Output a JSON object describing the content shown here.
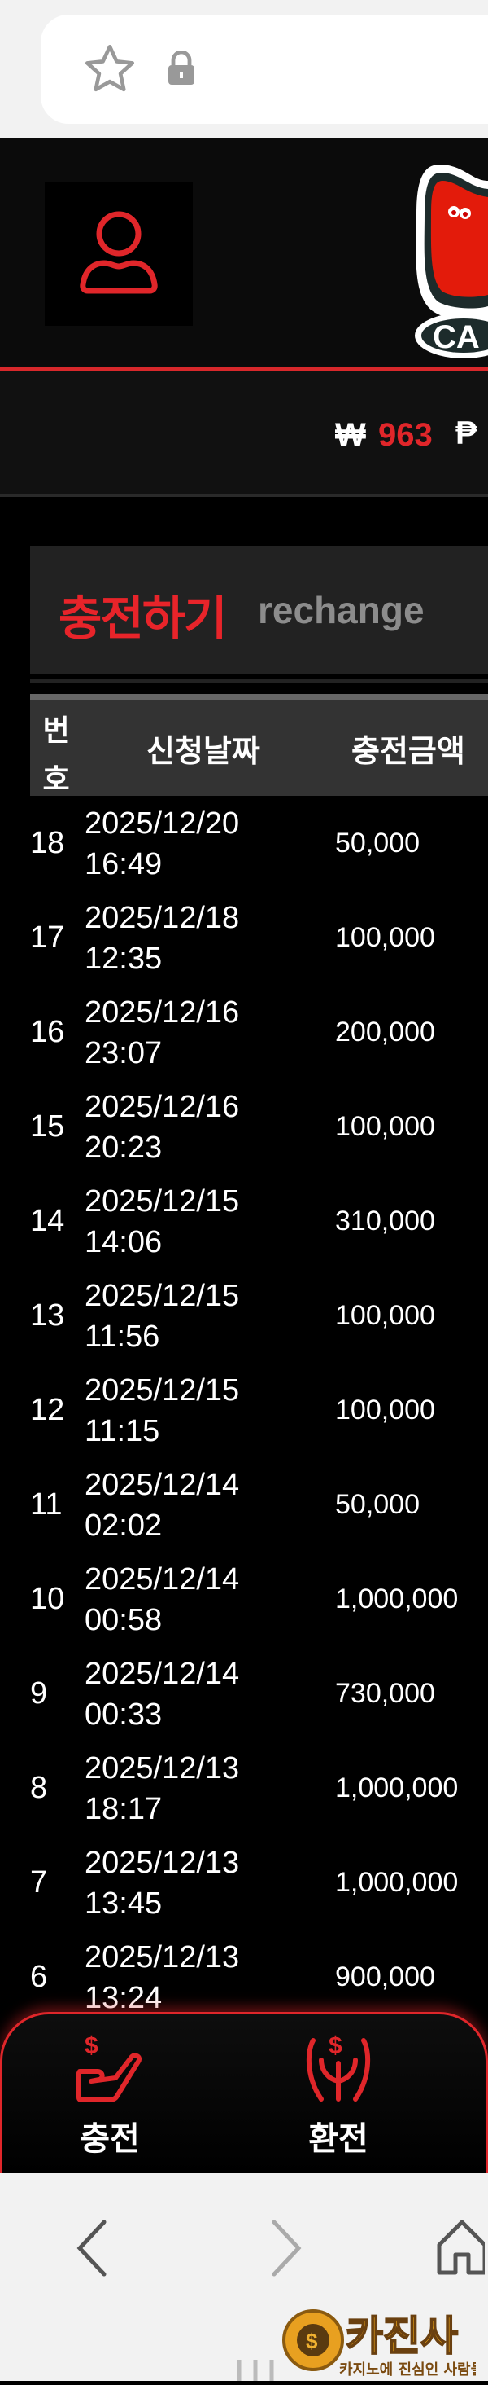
{
  "browser": {
    "star_icon": "star-icon",
    "lock_icon": "lock-icon",
    "nav": [
      "back-icon",
      "forward-icon",
      "home-icon"
    ]
  },
  "header": {
    "user_icon": "user-icon",
    "logo": "CA"
  },
  "balance": {
    "currency_symbol": "₩",
    "amount": "963",
    "point_symbol": "₱"
  },
  "section": {
    "title": "충전하기",
    "subtitle": "rechange"
  },
  "table": {
    "headers": {
      "no": "번호",
      "date": "신청날짜",
      "amount": "충전금액"
    },
    "rows": [
      {
        "no": "18",
        "date": "2025/12/20",
        "time": "16:49",
        "amount": "50,000"
      },
      {
        "no": "17",
        "date": "2025/12/18",
        "time": "12:35",
        "amount": "100,000"
      },
      {
        "no": "16",
        "date": "2025/12/16",
        "time": "23:07",
        "amount": "200,000"
      },
      {
        "no": "15",
        "date": "2025/12/16",
        "time": "20:23",
        "amount": "100,000"
      },
      {
        "no": "14",
        "date": "2025/12/15",
        "time": "14:06",
        "amount": "310,000"
      },
      {
        "no": "13",
        "date": "2025/12/15",
        "time": "11:56",
        "amount": "100,000"
      },
      {
        "no": "12",
        "date": "2025/12/15",
        "time": "11:15",
        "amount": "100,000"
      },
      {
        "no": "11",
        "date": "2025/12/14",
        "time": "02:02",
        "amount": "50,000"
      },
      {
        "no": "10",
        "date": "2025/12/14",
        "time": "00:58",
        "amount": "1,000,000"
      },
      {
        "no": "9",
        "date": "2025/12/14",
        "time": "00:33",
        "amount": "730,000"
      },
      {
        "no": "8",
        "date": "2025/12/13",
        "time": "18:17",
        "amount": "1,000,000"
      },
      {
        "no": "7",
        "date": "2025/12/13",
        "time": "13:45",
        "amount": "1,000,000"
      },
      {
        "no": "6",
        "date": "2025/12/13",
        "time": "13:24",
        "amount": "900,000"
      }
    ]
  },
  "bottom_nav": {
    "items": [
      {
        "label": "충전",
        "icon": "deposit-icon"
      },
      {
        "label": "환전",
        "icon": "withdraw-icon"
      }
    ]
  },
  "watermark": {
    "title": "카진사",
    "tagline": "카지노에 진심인 사람들"
  },
  "colors": {
    "accent": "#e0262a",
    "background": "#000000"
  }
}
